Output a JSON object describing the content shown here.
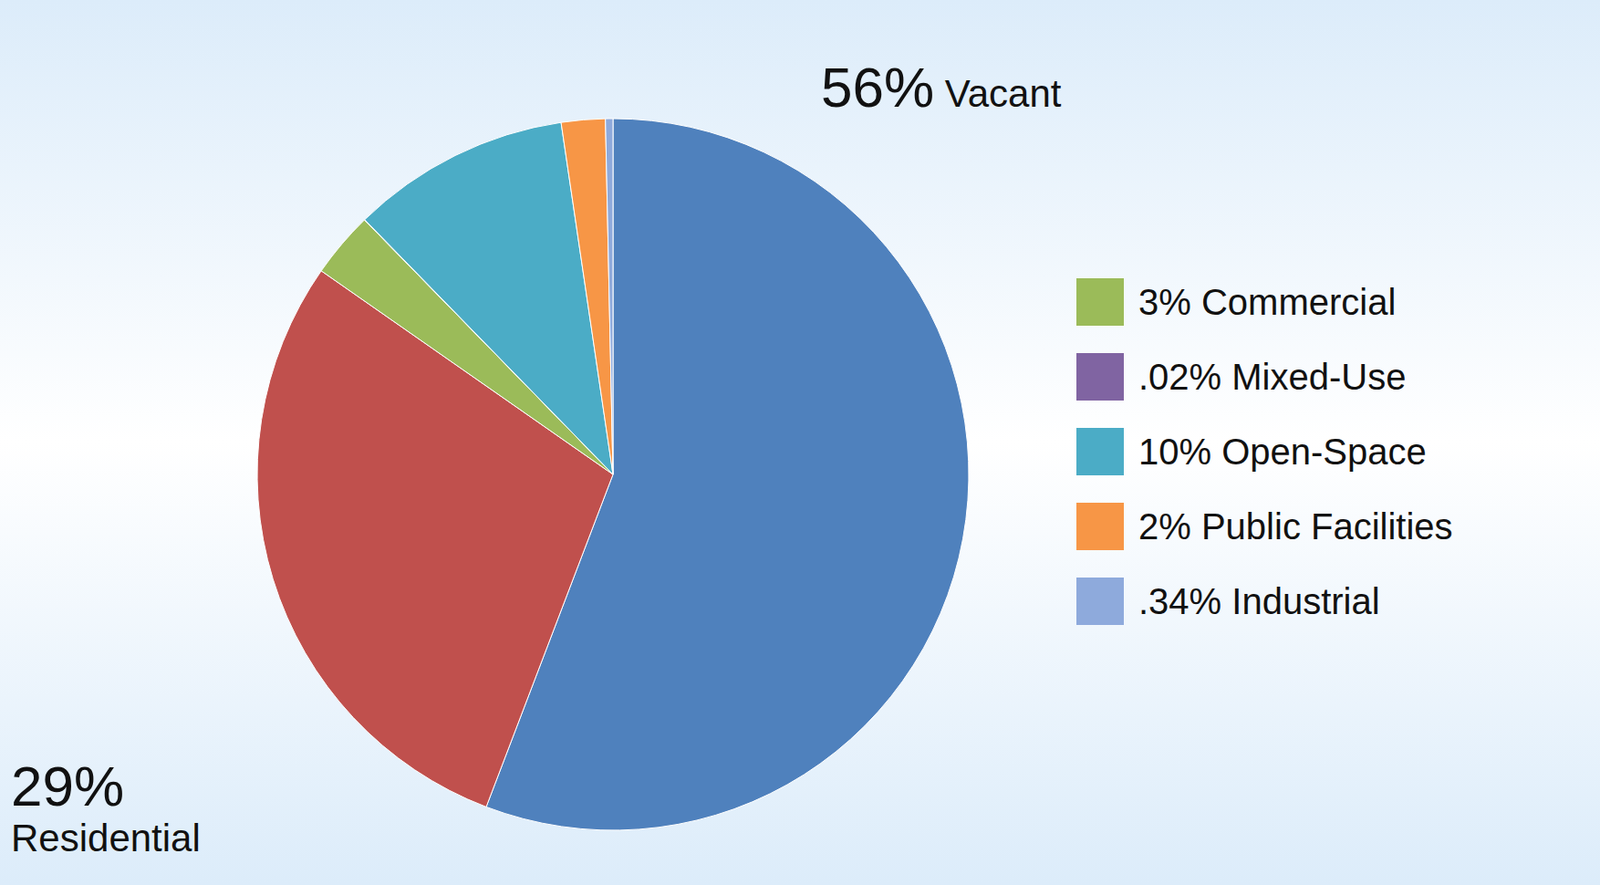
{
  "chart_data": {
    "type": "pie",
    "categories": [
      "Vacant",
      "Residential",
      "Commercial",
      "Mixed-Use",
      "Open-Space",
      "Public Facilities",
      "Industrial"
    ],
    "values": [
      56,
      29,
      3,
      0.02,
      10,
      2,
      0.34
    ],
    "value_labels": [
      "56%",
      "29%",
      "3%",
      ".02%",
      "10%",
      "2%",
      ".34%"
    ],
    "colors": [
      "#4f81bd",
      "#c0504d",
      "#9bbb59",
      "#8064a2",
      "#4bacc6",
      "#f79646",
      "#8eaadc"
    ],
    "legend": "right"
  }
}
